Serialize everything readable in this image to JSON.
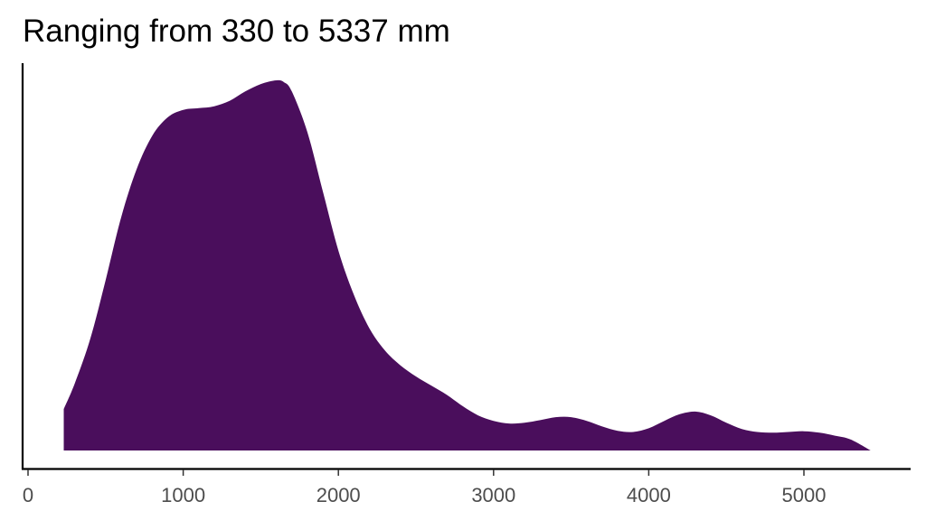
{
  "chart_data": {
    "type": "area",
    "title": "Ranging from 330 to 5337 mm",
    "xlabel": "",
    "ylabel": "",
    "xlim": [
      -30,
      5700
    ],
    "ylim": [
      0,
      1.0
    ],
    "xticks": [
      0,
      1000,
      2000,
      3000,
      4000,
      5000
    ],
    "xtick_labels": [
      "0",
      "1000",
      "2000",
      "3000",
      "4000",
      "5000"
    ],
    "grid": false,
    "legend": "none",
    "fill_color": "#4a0e5c",
    "series": [
      {
        "x": [
          230,
          300,
          400,
          500,
          600,
          700,
          800,
          900,
          1000,
          1100,
          1200,
          1300,
          1400,
          1500,
          1600,
          1650,
          1700,
          1800,
          1900,
          2000,
          2100,
          2200,
          2300,
          2400,
          2500,
          2600,
          2700,
          2800,
          2900,
          3000,
          3100,
          3200,
          3300,
          3400,
          3500,
          3600,
          3700,
          3800,
          3900,
          4000,
          4100,
          4200,
          4300,
          4400,
          4500,
          4600,
          4700,
          4800,
          4900,
          5000,
          5100,
          5200,
          5300,
          5430
        ],
        "y": [
          0.112,
          0.18,
          0.3,
          0.46,
          0.63,
          0.76,
          0.85,
          0.9,
          0.92,
          0.925,
          0.93,
          0.945,
          0.97,
          0.99,
          1.0,
          0.995,
          0.97,
          0.86,
          0.7,
          0.54,
          0.42,
          0.33,
          0.27,
          0.23,
          0.2,
          0.175,
          0.15,
          0.12,
          0.095,
          0.08,
          0.073,
          0.075,
          0.082,
          0.09,
          0.09,
          0.08,
          0.065,
          0.053,
          0.05,
          0.06,
          0.08,
          0.098,
          0.105,
          0.095,
          0.075,
          0.058,
          0.05,
          0.048,
          0.05,
          0.052,
          0.048,
          0.04,
          0.03,
          0.0
        ]
      }
    ]
  }
}
